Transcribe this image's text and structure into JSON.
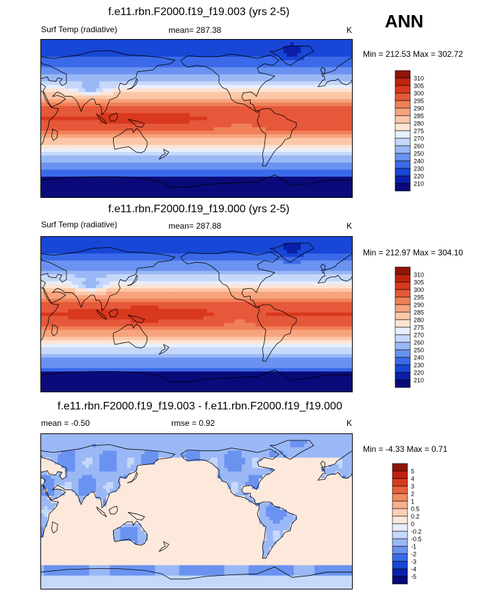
{
  "header": {
    "season": "ANN"
  },
  "colors": {
    "abs_scale": [
      "#0a0a7a",
      "#0a1fa8",
      "#1846d6",
      "#3a6ae8",
      "#6a92f0",
      "#9ab8f6",
      "#c6d8fa",
      "#e8eefc",
      "#fde4d2",
      "#fbc7a8",
      "#f7a47e",
      "#f08058",
      "#e6583a",
      "#d8381e",
      "#bf220e",
      "#8f1508"
    ],
    "diff_scale": [
      "#0a0a7a",
      "#0a1fa8",
      "#1846d6",
      "#3a6ae8",
      "#6a92f0",
      "#9ab8f6",
      "#c6d8fa",
      "#e8eefc",
      "#fde9dc",
      "#fbcfb6",
      "#f7ae8c",
      "#f08a62",
      "#e6623e",
      "#d83c20",
      "#bf220e",
      "#8f1508"
    ],
    "continent_outline": "#000000"
  },
  "panels": [
    {
      "title": "f.e11.rbn.F2000.f19_f19.003 (yrs 2-5)",
      "variable": "Surf Temp (radiative)",
      "stat": "mean= 287.38",
      "units": "K",
      "minmax": "Min = 212.53 Max = 302.72"
    },
    {
      "title": "f.e11.rbn.F2000.f19_f19.000 (yrs 2-5)",
      "variable": "Surf Temp (radiative)",
      "stat": "mean= 287.88",
      "units": "K",
      "minmax": "Min = 212.97 Max = 304.10"
    },
    {
      "title": "f.e11.rbn.F2000.f19_f19.003 - f.e11.rbn.F2000.f19_f19.000",
      "stat_left": "mean =  -0.50",
      "stat": "rmse =   0.92",
      "units": "K",
      "minmax": "Min =  -4.33 Max =   0.71"
    }
  ],
  "chart_data": [
    {
      "type": "heatmap",
      "title": "f.e11.rbn.F2000.f19_f19.003 (yrs 2-5)",
      "variable": "Surf Temp (radiative)",
      "units": "K",
      "mean": 287.38,
      "min": 212.53,
      "max": 302.72,
      "colorbar_levels": [
        310,
        305,
        300,
        295,
        290,
        285,
        280,
        275,
        270,
        260,
        250,
        240,
        230,
        220,
        210
      ]
    },
    {
      "type": "heatmap",
      "title": "f.e11.rbn.F2000.f19_f19.000 (yrs 2-5)",
      "variable": "Surf Temp (radiative)",
      "units": "K",
      "mean": 287.88,
      "min": 212.97,
      "max": 304.1,
      "colorbar_levels": [
        310,
        305,
        300,
        295,
        290,
        285,
        280,
        275,
        270,
        260,
        250,
        240,
        230,
        220,
        210
      ]
    },
    {
      "type": "heatmap",
      "title": "f.e11.rbn.F2000.f19_f19.003 - f.e11.rbn.F2000.f19_f19.000",
      "units": "K",
      "mean": -0.5,
      "rmse": 0.92,
      "min": -4.33,
      "max": 0.71,
      "colorbar_levels": [
        5,
        4,
        3,
        2,
        1,
        0.5,
        0.2,
        0,
        -0.2,
        -0.5,
        -1,
        -2,
        -3,
        -4,
        -5
      ]
    }
  ]
}
